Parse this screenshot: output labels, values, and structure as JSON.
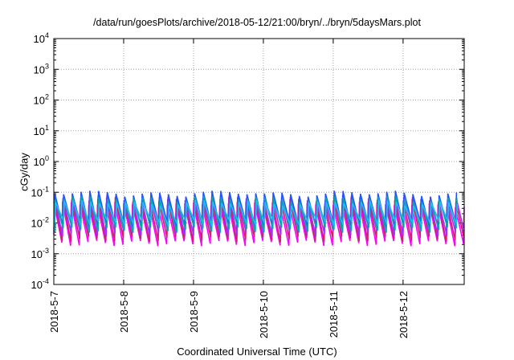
{
  "chart_data": {
    "type": "line",
    "title": "/data/run/goesPlots/archive/2018-05-12/21:00/bryn/../bryn/5daysMars.plot",
    "xlabel": "Coordinated Universal Time (UTC)",
    "ylabel": "cGy/day",
    "yscale": "log",
    "ylim": [
      0.0001,
      10000
    ],
    "xlim": [
      "2018-05-07T00:00",
      "2018-05-12T21:00"
    ],
    "x_tick_labels": [
      "2018-5-7",
      "2018-5-8",
      "2018-5-9",
      "2018-5-10",
      "2018-5-11",
      "2018-5-12"
    ],
    "y_ticks": [
      {
        "base": "10",
        "exp": "-4"
      },
      {
        "base": "10",
        "exp": "-3"
      },
      {
        "base": "10",
        "exp": "-2"
      },
      {
        "base": "10",
        "exp": "-1"
      },
      {
        "base": "10",
        "exp": "0"
      },
      {
        "base": "10",
        "exp": "1"
      },
      {
        "base": "10",
        "exp": "2"
      },
      {
        "base": "10",
        "exp": "3"
      },
      {
        "base": "10",
        "exp": "4"
      }
    ],
    "grid": true,
    "legend": "none",
    "sawtooth_period_hours": 3,
    "series": [
      {
        "color": "#ff00ff",
        "peak": 0.04,
        "trough": 0.0022
      },
      {
        "color": "#cc2266",
        "peak": 0.055,
        "trough": 0.003
      },
      {
        "color": "#9933ff",
        "peak": 0.065,
        "trough": 0.0045
      },
      {
        "color": "#2255ff",
        "peak": 0.09,
        "trough": 0.008
      },
      {
        "color": "#00aaaa",
        "peak": 0.06,
        "trough": 0.006
      },
      {
        "color": "#22bbee",
        "peak": 0.045,
        "trough": 0.01
      }
    ]
  }
}
